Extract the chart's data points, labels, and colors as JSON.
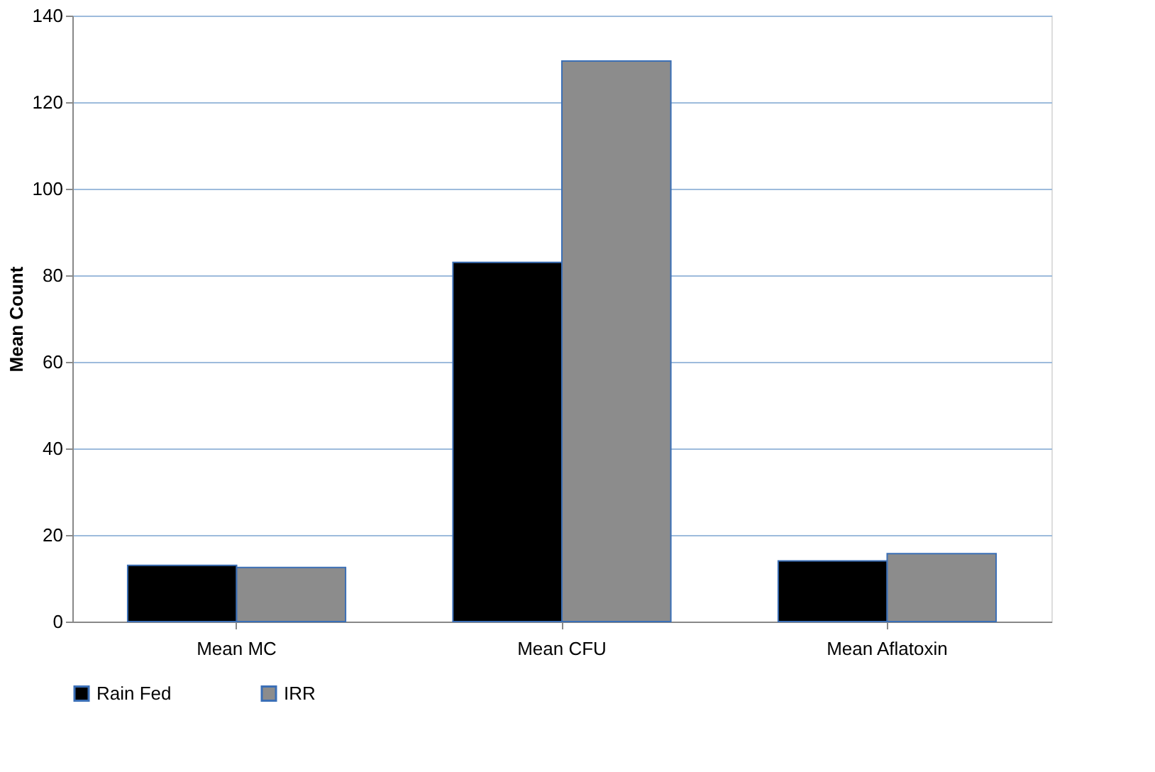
{
  "chart_data": {
    "type": "bar",
    "ylabel": "Mean Count",
    "categories": [
      "Mean MC",
      "Mean CFU",
      "Mean Aflatoxin"
    ],
    "series": [
      {
        "name": "Rain Fed",
        "color": "#000000",
        "values": [
          13,
          83,
          14
        ]
      },
      {
        "name": "IRR",
        "color": "#8c8c8c",
        "values": [
          12.5,
          129.5,
          15.7
        ]
      }
    ],
    "ylim": [
      0,
      140
    ],
    "yticks": [
      0,
      20,
      40,
      60,
      80,
      100,
      120,
      140
    ],
    "grid": "y",
    "legend": "bottom"
  }
}
